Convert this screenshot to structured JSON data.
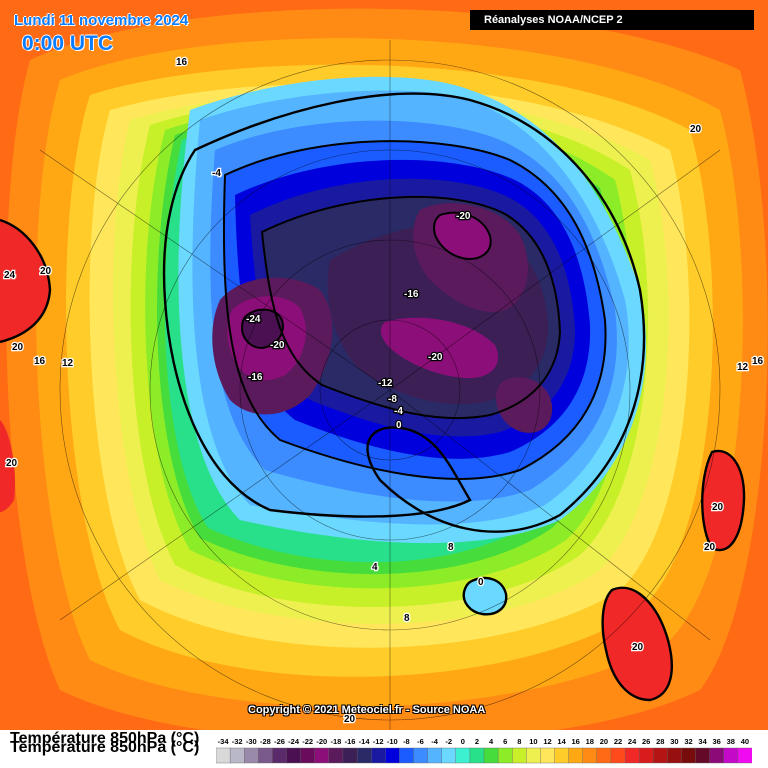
{
  "header": {
    "date": "Lundi 11 novembre 2024",
    "time": "0:00 UTC",
    "source": "Réanalyses NOAA/NCEP 2"
  },
  "copyright": "Copyright © 2021 Meteociel.fr - Source NOAA",
  "legend": {
    "title": "Température 850hPa (°C)",
    "unit": "°C",
    "scale": [
      {
        "v": -34,
        "c": "#d9d9d9"
      },
      {
        "v": -32,
        "c": "#b8b8c8"
      },
      {
        "v": -30,
        "c": "#9a8aaa"
      },
      {
        "v": -28,
        "c": "#7a5a8c"
      },
      {
        "v": -26,
        "c": "#5a2a6a"
      },
      {
        "v": -24,
        "c": "#4a1052"
      },
      {
        "v": -22,
        "c": "#6a0c5c"
      },
      {
        "v": -20,
        "c": "#8c0e78"
      },
      {
        "v": -18,
        "c": "#5a1a5c"
      },
      {
        "v": -16,
        "c": "#3b1f55"
      },
      {
        "v": -14,
        "c": "#2a2a66"
      },
      {
        "v": -12,
        "c": "#1a1aa0"
      },
      {
        "v": -10,
        "c": "#0000dd"
      },
      {
        "v": -8,
        "c": "#1a5cff"
      },
      {
        "v": -6,
        "c": "#3c8cff"
      },
      {
        "v": -4,
        "c": "#55b4ff"
      },
      {
        "v": -2,
        "c": "#6ad8ff"
      },
      {
        "v": 0,
        "c": "#3cf0d0"
      },
      {
        "v": 2,
        "c": "#28e08a"
      },
      {
        "v": 4,
        "c": "#46dc3c"
      },
      {
        "v": 6,
        "c": "#8cec28"
      },
      {
        "v": 8,
        "c": "#c8f028"
      },
      {
        "v": 10,
        "c": "#eef050"
      },
      {
        "v": 12,
        "c": "#ffe65a"
      },
      {
        "v": 14,
        "c": "#ffcc2a"
      },
      {
        "v": 16,
        "c": "#ffa814"
      },
      {
        "v": 18,
        "c": "#ff8a14"
      },
      {
        "v": 20,
        "c": "#ff6a14"
      },
      {
        "v": 22,
        "c": "#ff4a1c"
      },
      {
        "v": 24,
        "c": "#f02828"
      },
      {
        "v": 26,
        "c": "#d81c1c"
      },
      {
        "v": 28,
        "c": "#b41414"
      },
      {
        "v": 30,
        "c": "#961010"
      },
      {
        "v": 32,
        "c": "#780c0c"
      },
      {
        "v": 34,
        "c": "#640a28"
      },
      {
        "v": 36,
        "c": "#8c0a78"
      },
      {
        "v": 38,
        "c": "#c40ac8"
      },
      {
        "v": 40,
        "c": "#f00af0"
      }
    ]
  },
  "isotherm_labels": [
    {
      "t": "16",
      "key": "lbl-16-north-atlantic"
    },
    {
      "t": "-4",
      "key": "lbl-m4-greenland"
    },
    {
      "t": "20",
      "key": "lbl-20-japan"
    },
    {
      "t": "24",
      "key": "lbl-24-west"
    },
    {
      "t": "20",
      "key": "lbl-20-west"
    },
    {
      "t": "20",
      "key": "lbl-20-west-2"
    },
    {
      "t": "16",
      "key": "lbl-16-west"
    },
    {
      "t": "12",
      "key": "lbl-12-west"
    },
    {
      "t": "20",
      "key": "lbl-20-west-3"
    },
    {
      "t": "-20",
      "key": "lbl-m20-siberia"
    },
    {
      "t": "-16",
      "key": "lbl-m16-arctic"
    },
    {
      "t": "-24",
      "key": "lbl-m24-canada"
    },
    {
      "t": "-20",
      "key": "lbl-m20-canada"
    },
    {
      "t": "-16",
      "key": "lbl-m16-canada"
    },
    {
      "t": "-20",
      "key": "lbl-m20-centre"
    },
    {
      "t": "-12",
      "key": "lbl-m12-pole"
    },
    {
      "t": "-8",
      "key": "lbl-m8-pole"
    },
    {
      "t": "-4",
      "key": "lbl-m4-pole"
    },
    {
      "t": "0",
      "key": "lbl-0-pole"
    },
    {
      "t": "12",
      "key": "lbl-12-east"
    },
    {
      "t": "16",
      "key": "lbl-16-east"
    },
    {
      "t": "20",
      "key": "lbl-20-east"
    },
    {
      "t": "20",
      "key": "lbl-20-east-2"
    },
    {
      "t": "8",
      "key": "lbl-8-europe"
    },
    {
      "t": "0",
      "key": "lbl-0-europe"
    },
    {
      "t": "4",
      "key": "lbl-4-atlantic"
    },
    {
      "t": "8",
      "key": "lbl-8-south"
    },
    {
      "t": "20",
      "key": "lbl-20-india"
    },
    {
      "t": "20",
      "key": "lbl-20-bottom"
    }
  ]
}
